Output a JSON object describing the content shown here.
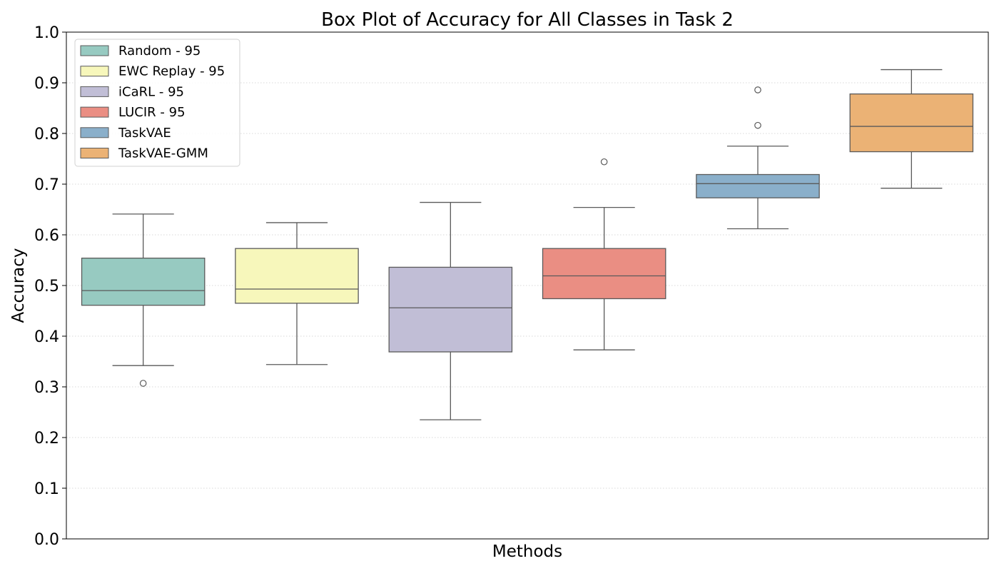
{
  "chart_data": {
    "type": "box",
    "title": "Box Plot of Accuracy for All Classes in Task 2",
    "xlabel": "Methods",
    "ylabel": "Accuracy",
    "ylim": [
      0.0,
      1.0
    ],
    "yticks": [
      "0.0",
      "0.1",
      "0.2",
      "0.3",
      "0.4",
      "0.5",
      "0.6",
      "0.7",
      "0.8",
      "0.9",
      "1.0"
    ],
    "grid": "horizontal dotted",
    "legend_position": "top-left",
    "series": [
      {
        "name": "Random - 95",
        "color": "#97cac1",
        "whisker_low": 0.342,
        "q1": 0.461,
        "median": 0.49,
        "q3": 0.554,
        "whisker_high": 0.641,
        "outliers": [
          0.307
        ]
      },
      {
        "name": "EWC Replay - 95",
        "color": "#f7f7bb",
        "whisker_low": 0.344,
        "q1": 0.465,
        "median": 0.493,
        "q3": 0.573,
        "whisker_high": 0.624,
        "outliers": []
      },
      {
        "name": "iCaRL - 95",
        "color": "#c1bed6",
        "whisker_low": 0.235,
        "q1": 0.369,
        "median": 0.456,
        "q3": 0.536,
        "whisker_high": 0.664,
        "outliers": []
      },
      {
        "name": "LUCIR - 95",
        "color": "#ea8e83",
        "whisker_low": 0.373,
        "q1": 0.474,
        "median": 0.519,
        "q3": 0.573,
        "whisker_high": 0.654,
        "outliers": [
          0.744
        ]
      },
      {
        "name": "TaskVAE",
        "color": "#8aafca",
        "whisker_low": 0.612,
        "q1": 0.673,
        "median": 0.701,
        "q3": 0.719,
        "whisker_high": 0.775,
        "outliers": [
          0.816,
          0.886
        ]
      },
      {
        "name": "TaskVAE-GMM",
        "color": "#ebb275",
        "whisker_low": 0.692,
        "q1": 0.764,
        "median": 0.814,
        "q3": 0.878,
        "whisker_high": 0.926,
        "outliers": []
      }
    ]
  }
}
